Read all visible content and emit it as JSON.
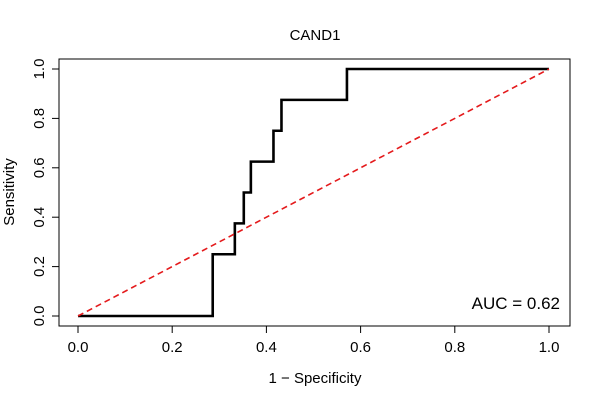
{
  "chart_data": {
    "type": "line",
    "title": "CAND1",
    "xlabel": "1 − Specificity",
    "ylabel": "Sensitivity",
    "xlim": [
      0,
      1
    ],
    "ylim": [
      0,
      1
    ],
    "xticks": [
      "0.0",
      "0.2",
      "0.4",
      "0.6",
      "0.8",
      "1.0"
    ],
    "yticks": [
      "0.0",
      "0.2",
      "0.4",
      "0.6",
      "0.8",
      "1.0"
    ],
    "annotation": "AUC = 0.62",
    "grid": false,
    "series": [
      {
        "color": "#000000",
        "style": "solid",
        "points": [
          [
            0.0,
            0.0
          ],
          [
            0.286,
            0.0
          ],
          [
            0.286,
            0.25
          ],
          [
            0.333,
            0.25
          ],
          [
            0.333,
            0.375
          ],
          [
            0.352,
            0.375
          ],
          [
            0.352,
            0.5
          ],
          [
            0.367,
            0.5
          ],
          [
            0.367,
            0.625
          ],
          [
            0.415,
            0.625
          ],
          [
            0.415,
            0.75
          ],
          [
            0.432,
            0.75
          ],
          [
            0.432,
            0.875
          ],
          [
            0.571,
            0.875
          ],
          [
            0.571,
            1.0
          ],
          [
            1.0,
            1.0
          ]
        ]
      },
      {
        "color": "#e41a1c",
        "style": "dashed",
        "points": [
          [
            0.0,
            0.0
          ],
          [
            1.0,
            1.0
          ]
        ]
      }
    ]
  }
}
